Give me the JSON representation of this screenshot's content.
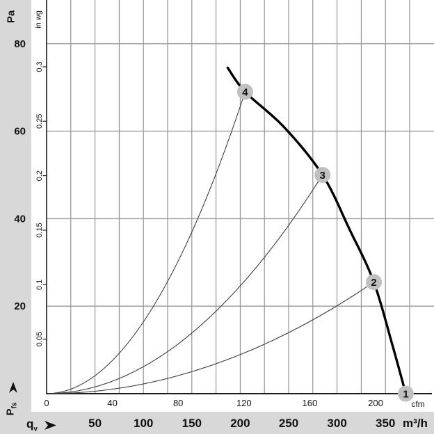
{
  "page": {
    "type": "fan-performance-curve-chart"
  },
  "colors": {
    "background": "#d8d8d8",
    "plot_background": "#ffffff",
    "grid": "#8a8a8a",
    "axis": "#1c1c1c",
    "fan_curve": "#000000",
    "system_curve": "#3c3c3c",
    "marker_fill": "#c0c0c0",
    "marker_text": "#ffffff"
  },
  "labels": {
    "flow_symbol_main": "q",
    "flow_symbol_sub": "v",
    "pressure_symbol_main": "P",
    "pressure_symbol_sub": "fs"
  },
  "chart_data": {
    "type": "line",
    "description": "Fan static pressure vs. volume flow with numbered operating points and system resistance parabolas",
    "x_primary": {
      "label": "m³/h",
      "ticks": [
        50,
        100,
        150,
        200,
        250,
        300,
        350
      ],
      "range": [
        0,
        400
      ],
      "gridline_step": 25
    },
    "x_secondary": {
      "label": "cfm",
      "ticks": [
        0,
        40,
        80,
        120,
        160,
        200
      ]
    },
    "y_primary": {
      "label": "Pa",
      "ticks": [
        20,
        40,
        60,
        80
      ],
      "range": [
        0,
        90
      ],
      "gridlines": true
    },
    "y_secondary": {
      "label": "in wg",
      "ticks": [
        0.05,
        0.1,
        0.15,
        0.2,
        0.25,
        0.3
      ]
    },
    "fan_curve_m3h_pa": [
      [
        187,
        74.5
      ],
      [
        205,
        69
      ],
      [
        245,
        61
      ],
      [
        285,
        50
      ],
      [
        313,
        37.5
      ],
      [
        338,
        25.5
      ],
      [
        358,
        10.5
      ],
      [
        371,
        0
      ]
    ],
    "operating_points": [
      {
        "id": "1",
        "q_m3h": 371,
        "p_pa": 0
      },
      {
        "id": "2",
        "q_m3h": 338,
        "p_pa": 25.5
      },
      {
        "id": "3",
        "q_m3h": 285,
        "p_pa": 50
      },
      {
        "id": "4",
        "q_m3h": 205,
        "p_pa": 69
      }
    ],
    "system_curves_to_points": [
      "2",
      "3",
      "4"
    ],
    "legend": "none",
    "grid": "on"
  }
}
